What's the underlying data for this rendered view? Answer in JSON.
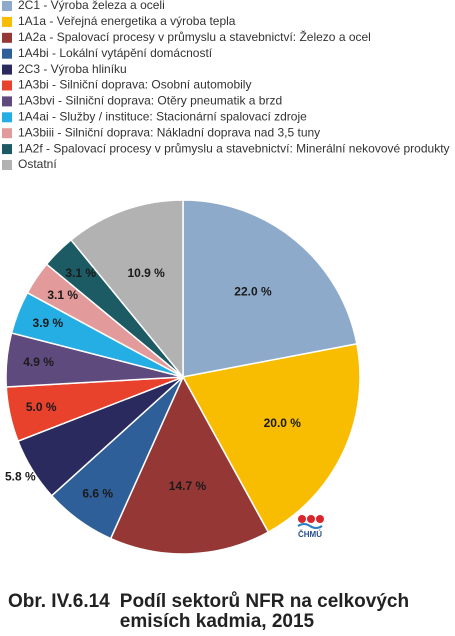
{
  "chart_data": {
    "type": "pie",
    "figure_number": "Obr. IV.6.14",
    "title": "Podíl sektorů NFR na celkových emisích kadmia, 2015",
    "logo_text": "ČHMÚ",
    "categories": [
      "2C1 - Výroba železa a oceli",
      "1A1a - Veřejná energetika a výroba tepla",
      "1A2a - Spalovací procesy v průmyslu a stavebnictví: Železo a ocel",
      "1A4bi - Lokální vytápění domácností",
      "2C3 - Výroba hliníku",
      "1A3bi - Silniční doprava: Osobní automobily",
      "1A3bvi - Silniční doprava: Otěry pneumatik a brzd",
      "1A4ai - Služby / instituce: Stacionární spalovací zdroje",
      "1A3biii - Silniční doprava: Nákladní doprava nad 3,5 tuny",
      "1A2f - Spalovací procesy v průmyslu a stavebnictví: Minerální nekovové produkty",
      "Ostatní"
    ],
    "values": [
      22.0,
      20.0,
      14.7,
      6.6,
      5.8,
      5.0,
      4.9,
      3.9,
      3.1,
      3.1,
      10.9
    ],
    "value_labels": [
      "22.0 %",
      "20.0 %",
      "14.7 %",
      "6.6 %",
      "5.8 %",
      "5.0 %",
      "4.9 %",
      "3.9 %",
      "3.1 %",
      "3.1 %",
      "10.9 %"
    ],
    "colors": [
      "#8eaacb",
      "#f8bd00",
      "#953735",
      "#2f5f98",
      "#2b2a5e",
      "#e8412c",
      "#5f4a7e",
      "#25aee4",
      "#e39a9b",
      "#1c5a64",
      "#b2b2b2"
    ],
    "legend": "top-left"
  }
}
